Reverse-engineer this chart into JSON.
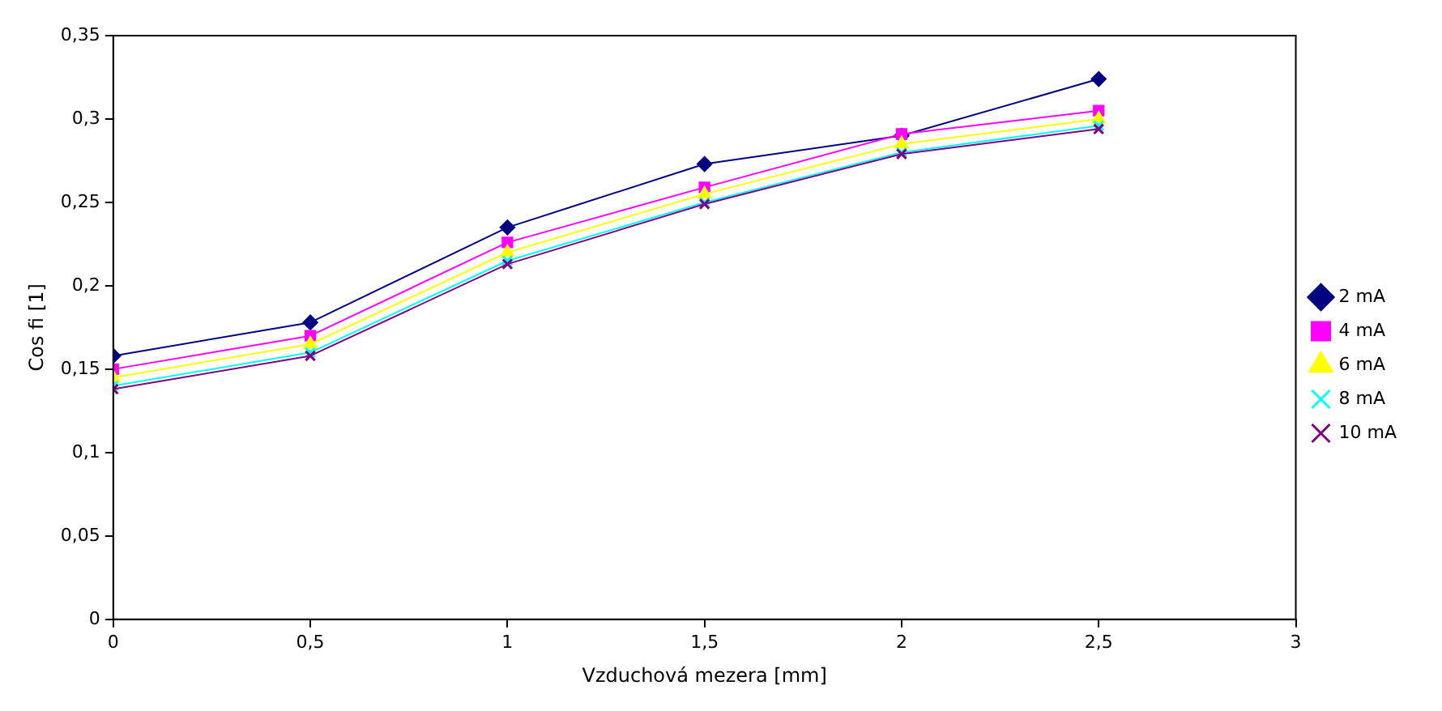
{
  "chart_data": {
    "type": "line",
    "xlabel": "Vzduchová mezera [mm]",
    "ylabel": "Cos fi [1]",
    "x": [
      0,
      0.5,
      1,
      1.5,
      2,
      2.5
    ],
    "xlim": [
      0,
      3
    ],
    "xticks": [
      0,
      {
        "value": 0.5,
        "label": "0,5"
      },
      1,
      {
        "value": 1.5,
        "label": "1,5"
      },
      2,
      {
        "value": 2.5,
        "label": "2,5"
      },
      3
    ],
    "ylim": [
      0,
      0.35
    ],
    "yticks": [
      0,
      {
        "value": 0.05,
        "label": "0,05"
      },
      {
        "value": 0.1,
        "label": "0,1"
      },
      {
        "value": 0.15,
        "label": "0,15"
      },
      {
        "value": 0.2,
        "label": "0,2"
      },
      {
        "value": 0.25,
        "label": "0,25"
      },
      {
        "value": 0.3,
        "label": "0,3"
      },
      {
        "value": 0.35,
        "label": "0,35"
      }
    ],
    "grid": false,
    "legend": "right",
    "line_style": "solid",
    "series": [
      {
        "name": "2 mA",
        "color": "#000080",
        "marker": "diamond",
        "values": [
          0.158,
          0.178,
          0.235,
          0.273,
          0.29,
          0.324
        ]
      },
      {
        "name": "4 mA",
        "color": "#ff00ff",
        "marker": "square",
        "values": [
          0.15,
          0.17,
          0.226,
          0.259,
          0.291,
          0.305
        ]
      },
      {
        "name": "6 mA",
        "color": "#ffff00",
        "marker": "triangle",
        "values": [
          0.145,
          0.165,
          0.22,
          0.255,
          0.285,
          0.3
        ]
      },
      {
        "name": "8 mA",
        "color": "#00ffff",
        "marker": "cross",
        "values": [
          0.14,
          0.16,
          0.215,
          0.25,
          0.28,
          0.296
        ]
      },
      {
        "name": "10 mA",
        "color": "#800080",
        "marker": "cross",
        "values": [
          0.138,
          0.158,
          0.213,
          0.249,
          0.279,
          0.294
        ]
      }
    ]
  }
}
